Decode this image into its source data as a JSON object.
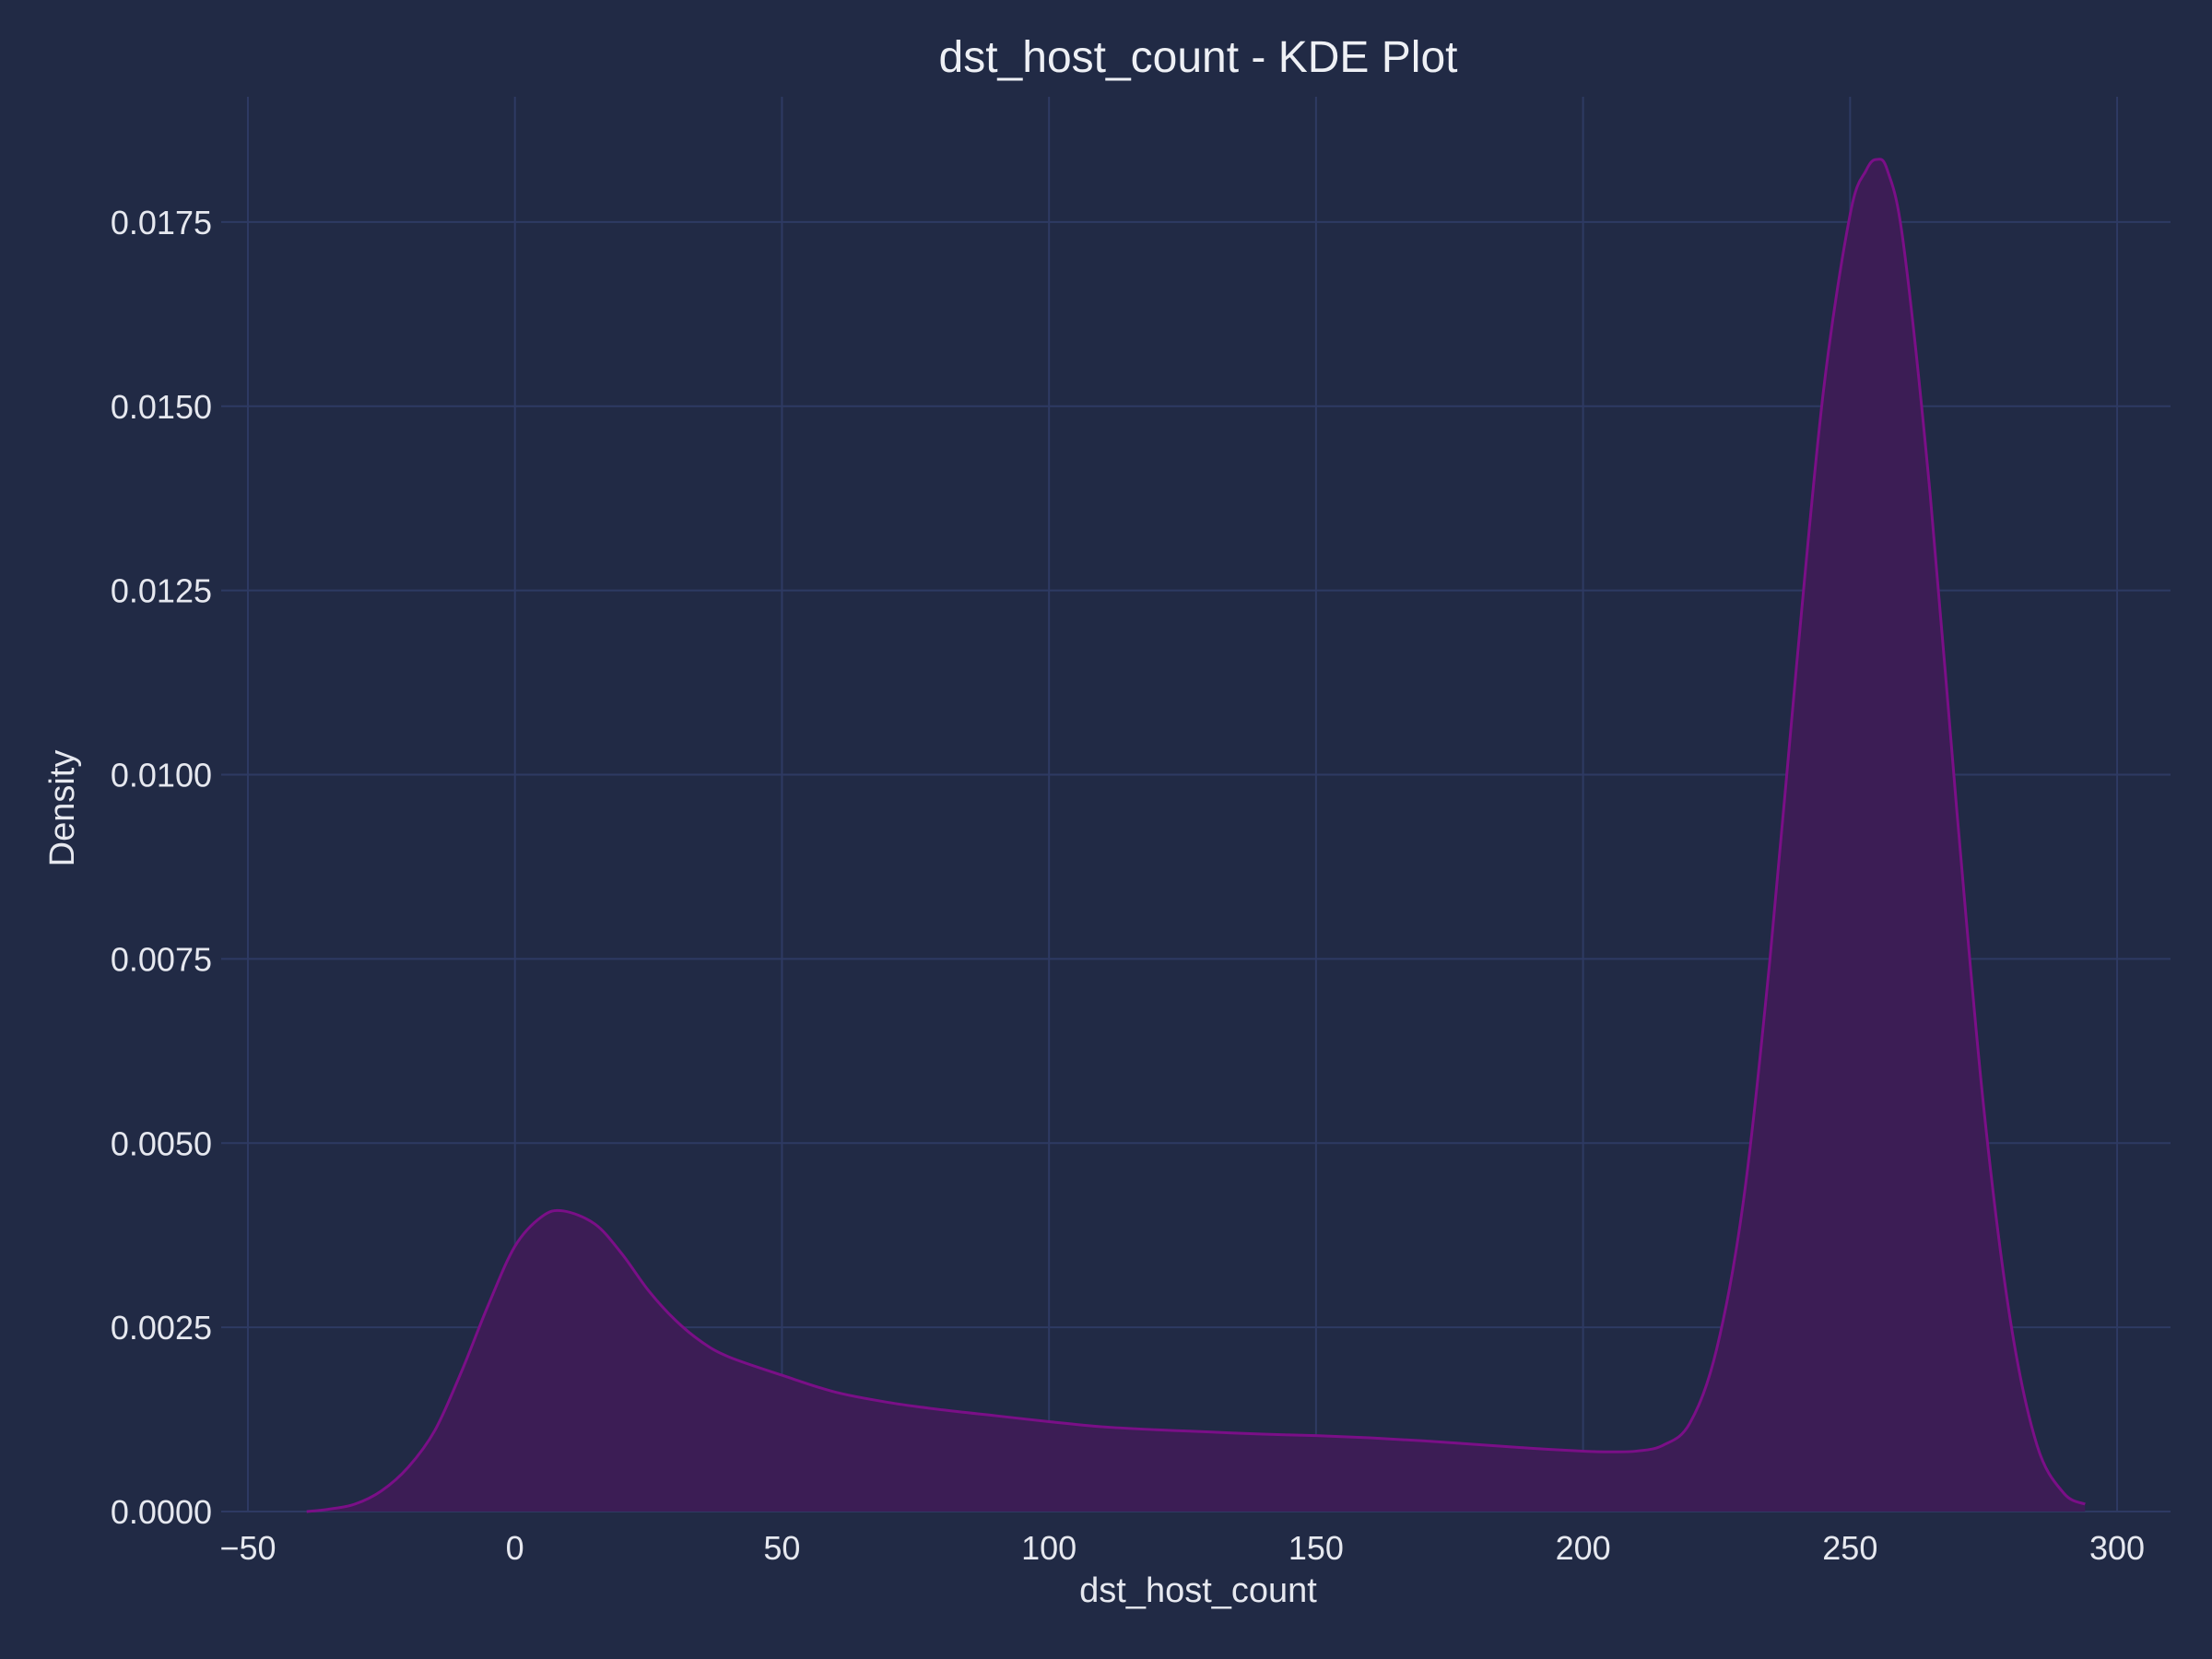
{
  "chart_data": {
    "type": "area",
    "title": "dst_host_count - KDE Plot",
    "xlabel": "dst_host_count",
    "ylabel": "Density",
    "xlim": [
      -55,
      310
    ],
    "ylim": [
      0,
      0.0192
    ],
    "x_ticks": [
      -50,
      0,
      50,
      100,
      150,
      200,
      250,
      300
    ],
    "x_tick_labels": [
      "−50",
      "0",
      "50",
      "100",
      "150",
      "200",
      "250",
      "300"
    ],
    "y_ticks": [
      0,
      0.0025,
      0.005,
      0.0075,
      0.01,
      0.0125,
      0.015,
      0.0175
    ],
    "y_tick_labels": [
      "0.0000",
      "0.0025",
      "0.0050",
      "0.0075",
      "0.0100",
      "0.0125",
      "0.0150",
      "0.0175"
    ],
    "grid": true,
    "colors": {
      "line": "#7a0f87",
      "fill": "#3c1d55",
      "grid": "#2e3a63",
      "background": "#212a45",
      "text": "#e6e8ef"
    },
    "series": [
      {
        "name": "dst_host_count",
        "x": [
          -39,
          -35,
          -30,
          -25,
          -20,
          -15,
          -10,
          -5,
          0,
          5,
          9,
          15,
          20,
          25,
          30,
          35,
          40,
          50,
          60,
          70,
          80,
          90,
          100,
          110,
          120,
          130,
          140,
          150,
          160,
          170,
          180,
          190,
          200,
          205,
          210,
          215,
          220,
          225,
          230,
          235,
          240,
          245,
          250,
          253,
          255,
          257,
          260,
          265,
          270,
          275,
          280,
          285,
          290,
          294
        ],
        "y": [
          0,
          3e-05,
          0.0001,
          0.00028,
          0.0006,
          0.0011,
          0.0019,
          0.0028,
          0.0036,
          0.004,
          0.00408,
          0.0039,
          0.0035,
          0.003,
          0.0026,
          0.0023,
          0.0021,
          0.00185,
          0.00162,
          0.00148,
          0.00138,
          0.0013,
          0.00122,
          0.00115,
          0.00111,
          0.00108,
          0.00105,
          0.00103,
          0.001,
          0.00096,
          0.00091,
          0.00086,
          0.00082,
          0.00081,
          0.00082,
          0.0009,
          0.0012,
          0.0022,
          0.0042,
          0.0075,
          0.0115,
          0.0152,
          0.0176,
          0.0182,
          0.01835,
          0.0182,
          0.0172,
          0.0138,
          0.0095,
          0.0055,
          0.0026,
          0.0009,
          0.00025,
          0.0001
        ]
      }
    ]
  }
}
